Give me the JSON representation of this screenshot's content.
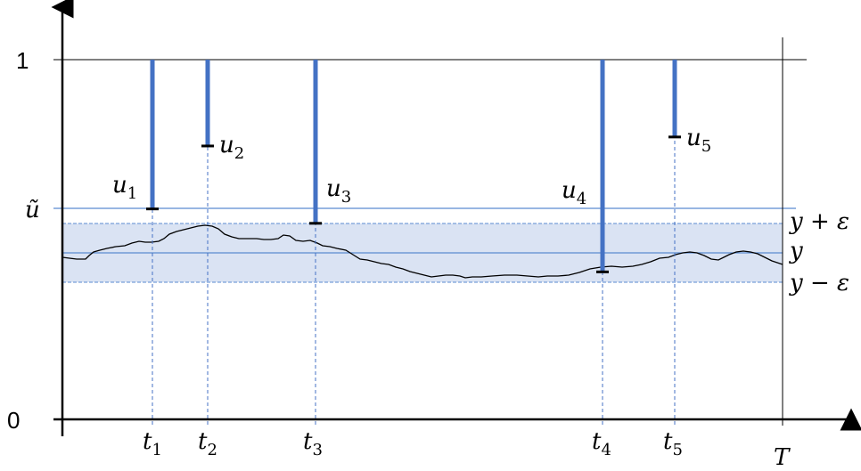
{
  "axis": {
    "y_tick_one": "1",
    "y_tick_zero": "0",
    "y_tick_utilde": "ũ",
    "end_label": "T"
  },
  "band": {
    "upper_label": "y + ε",
    "center_label": "y",
    "lower_label": "y − ε"
  },
  "thresholds": [
    {
      "var": "u",
      "index": "1",
      "level": 0.585
    },
    {
      "var": "u",
      "index": "2",
      "level": 0.76
    },
    {
      "var": "u",
      "index": "3",
      "level": 0.545
    },
    {
      "var": "u",
      "index": "4",
      "level": 0.41
    },
    {
      "var": "u",
      "index": "5",
      "level": 0.785
    }
  ],
  "times": [
    {
      "var": "t",
      "index": "1"
    },
    {
      "var": "t",
      "index": "2"
    },
    {
      "var": "t",
      "index": "3"
    },
    {
      "var": "t",
      "index": "4"
    },
    {
      "var": "t",
      "index": "5"
    }
  ],
  "colors": {
    "bar": "#4472c4",
    "band_fill": "#dae3f3",
    "band_line": "#5b8bd0",
    "guide": "#4472c4",
    "axis": "#000000",
    "path": "#000000"
  }
}
